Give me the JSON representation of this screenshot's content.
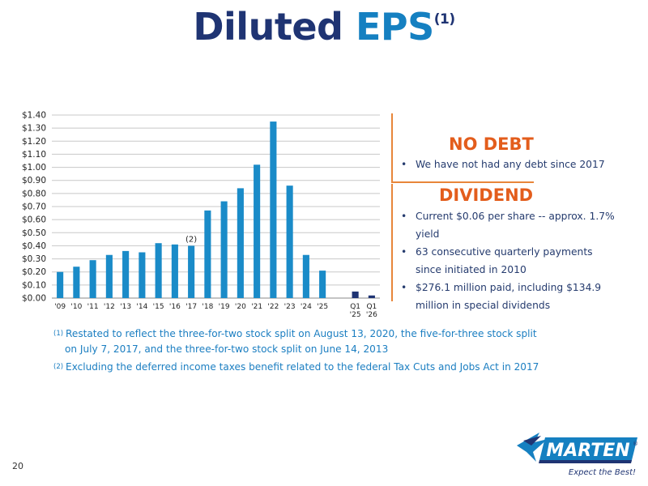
{
  "title": {
    "main": "Diluted",
    "accent": "EPS",
    "superscript": "(1)"
  },
  "chart_data": {
    "type": "bar",
    "categories": [
      "'09",
      "'10",
      "'11",
      "'12",
      "'13",
      "'14",
      "'15",
      "'16",
      "'17",
      "'18",
      "'19",
      "'20",
      "'21",
      "'22",
      "'23",
      "'24",
      "'25",
      "",
      "Q1 '25",
      "Q1 '26"
    ],
    "values": [
      0.2,
      0.24,
      0.29,
      0.33,
      0.36,
      0.35,
      0.42,
      0.41,
      0.4,
      0.67,
      0.74,
      0.84,
      1.02,
      1.35,
      0.86,
      0.33,
      0.21,
      null,
      0.05,
      0.02
    ],
    "y_ticks": [
      "$0.00",
      "$0.10",
      "$0.20",
      "$0.30",
      "$0.40",
      "$0.50",
      "$0.60",
      "$0.70",
      "$0.80",
      "$0.90",
      "$1.00",
      "$1.10",
      "$1.20",
      "$1.30",
      "$1.40"
    ],
    "ylim": [
      0,
      1.4
    ],
    "grid": true,
    "annotations": [
      {
        "category": "'17",
        "text": "(2)"
      }
    ],
    "colors": {
      "annual": "#1a8bc8",
      "quarterly": "#1f3473",
      "grid": "#c8c8c8",
      "axis_text": "#222222"
    }
  },
  "no_debt": {
    "heading": "NO DEBT",
    "bullets": [
      "We have not had any debt since 2017"
    ]
  },
  "dividend": {
    "heading": "DIVIDEND",
    "bullets": [
      "Current  $0.06 per share -- approx. 1.7% yield",
      "63 consecutive quarterly payments since initiated in 2010",
      "$276.1 million paid, including $134.9 million in special dividends"
    ]
  },
  "footnotes": [
    {
      "marker": "(1)",
      "line1": "Restated to reflect the three-for-two stock split on August 13, 2020, the five-for-three stock split",
      "line2": "on July 7, 2017, and the three-for-two stock split on June 14, 2013"
    },
    {
      "marker": "(2)",
      "line1": "Excluding the deferred income taxes benefit related to the federal Tax Cuts and Jobs Act in 2017"
    }
  ],
  "page_number": "20",
  "logo": {
    "name": "MARTEN",
    "registered": "®",
    "tagline": "Expect the Best!",
    "icon": "airplane-arrow-icon"
  },
  "colors": {
    "navy": "#1f3473",
    "blue": "#1580c1",
    "orange": "#e35d1c"
  }
}
